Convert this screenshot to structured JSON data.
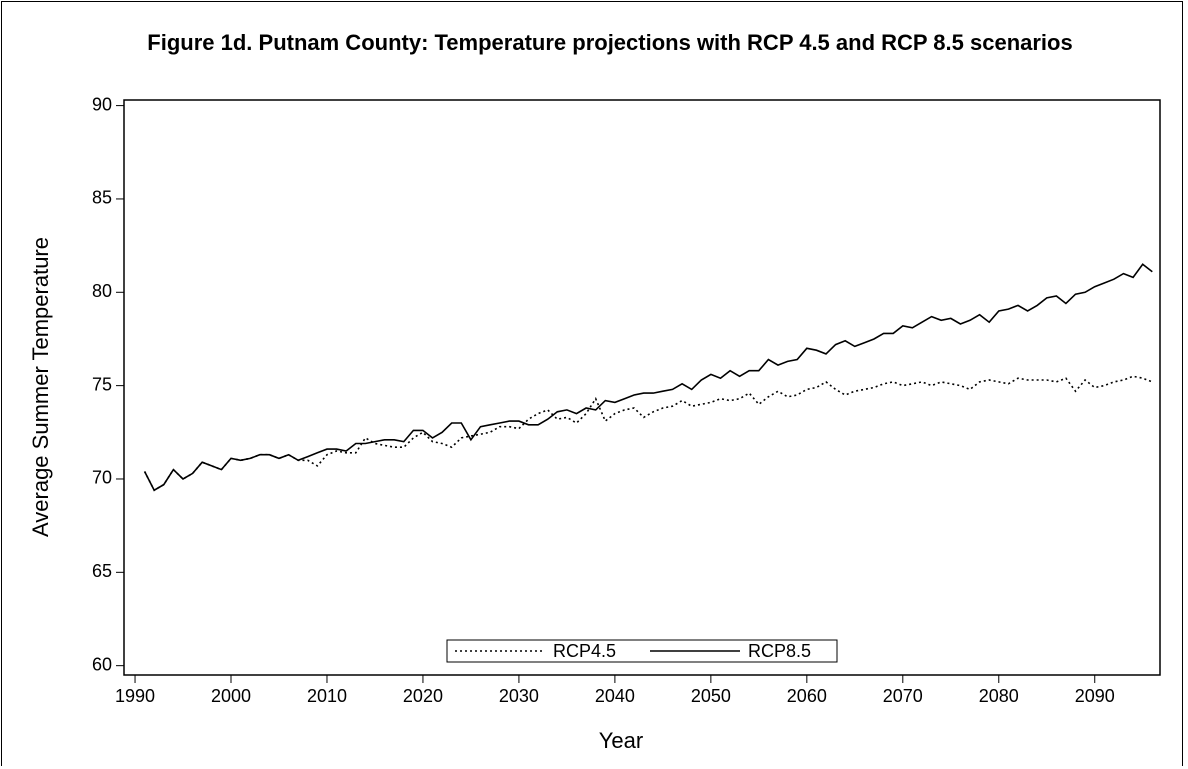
{
  "chart_data": {
    "type": "line",
    "title": "Figure 1d. Putnam County: Temperature projections with RCP 4.5 and RCP 8.5 scenarios",
    "x_label": "Year",
    "y_label": "Average Summer Temperature",
    "x": [
      1991,
      1992,
      1993,
      1994,
      1995,
      1996,
      1997,
      1998,
      1999,
      2000,
      2001,
      2002,
      2003,
      2004,
      2005,
      2006,
      2007,
      2008,
      2009,
      2010,
      2011,
      2012,
      2013,
      2014,
      2015,
      2016,
      2017,
      2018,
      2019,
      2020,
      2021,
      2022,
      2023,
      2024,
      2025,
      2026,
      2027,
      2028,
      2029,
      2030,
      2031,
      2032,
      2033,
      2034,
      2035,
      2036,
      2037,
      2038,
      2039,
      2040,
      2041,
      2042,
      2043,
      2044,
      2045,
      2046,
      2047,
      2048,
      2049,
      2050,
      2051,
      2052,
      2053,
      2054,
      2055,
      2056,
      2057,
      2058,
      2059,
      2060,
      2061,
      2062,
      2063,
      2064,
      2065,
      2066,
      2067,
      2068,
      2069,
      2070,
      2071,
      2072,
      2073,
      2074,
      2075,
      2076,
      2077,
      2078,
      2079,
      2080,
      2081,
      2082,
      2083,
      2084,
      2085,
      2086,
      2087,
      2088,
      2089,
      2090,
      2091,
      2092,
      2093,
      2094,
      2095,
      2096
    ],
    "series": [
      {
        "name": "RCP4.5",
        "color": "#000000",
        "line_style": "dotted",
        "values": [
          70.4,
          69.4,
          69.7,
          70.5,
          70.0,
          70.3,
          70.9,
          70.7,
          70.5,
          71.1,
          71.0,
          71.1,
          71.3,
          71.3,
          71.1,
          71.3,
          71.0,
          71.0,
          70.7,
          71.3,
          71.5,
          71.4,
          71.4,
          72.2,
          71.9,
          71.8,
          71.7,
          71.7,
          72.2,
          72.5,
          72.0,
          71.9,
          71.7,
          72.2,
          72.3,
          72.4,
          72.5,
          72.8,
          72.8,
          72.7,
          73.2,
          73.5,
          73.7,
          73.2,
          73.3,
          73.0,
          73.5,
          74.3,
          73.1,
          73.5,
          73.7,
          73.8,
          73.3,
          73.6,
          73.8,
          73.9,
          74.2,
          73.9,
          74.0,
          74.1,
          74.3,
          74.2,
          74.3,
          74.6,
          74.0,
          74.4,
          74.7,
          74.4,
          74.5,
          74.8,
          74.9,
          75.2,
          74.8,
          74.5,
          74.7,
          74.8,
          74.9,
          75.1,
          75.2,
          75.0,
          75.1,
          75.2,
          75.0,
          75.2,
          75.1,
          75.0,
          74.8,
          75.2,
          75.3,
          75.2,
          75.1,
          75.4,
          75.3,
          75.3,
          75.3,
          75.2,
          75.4,
          74.7,
          75.3,
          74.9,
          75.0,
          75.2,
          75.3,
          75.5,
          75.4,
          75.2
        ]
      },
      {
        "name": "RCP8.5",
        "color": "#000000",
        "line_style": "solid",
        "values": [
          70.4,
          69.4,
          69.7,
          70.5,
          70.0,
          70.3,
          70.9,
          70.7,
          70.5,
          71.1,
          71.0,
          71.1,
          71.3,
          71.3,
          71.1,
          71.3,
          71.0,
          71.2,
          71.4,
          71.6,
          71.6,
          71.5,
          71.9,
          71.9,
          72.0,
          72.1,
          72.1,
          72.0,
          72.6,
          72.6,
          72.2,
          72.5,
          73.0,
          73.0,
          72.1,
          72.8,
          72.9,
          73.0,
          73.1,
          73.1,
          72.9,
          72.9,
          73.2,
          73.6,
          73.7,
          73.5,
          73.8,
          73.7,
          74.2,
          74.1,
          74.3,
          74.5,
          74.6,
          74.6,
          74.7,
          74.8,
          75.1,
          74.8,
          75.3,
          75.6,
          75.4,
          75.8,
          75.5,
          75.8,
          75.8,
          76.4,
          76.1,
          76.3,
          76.4,
          77.0,
          76.9,
          76.7,
          77.2,
          77.4,
          77.1,
          77.3,
          77.5,
          77.8,
          77.8,
          78.2,
          78.1,
          78.4,
          78.7,
          78.5,
          78.6,
          78.3,
          78.5,
          78.8,
          78.4,
          79.0,
          79.1,
          79.3,
          79.0,
          79.3,
          79.7,
          79.8,
          79.4,
          79.9,
          80.0,
          80.3,
          80.5,
          80.7,
          81.0,
          80.8,
          81.5,
          81.1
        ]
      }
    ],
    "xlim": [
      1988.85,
      2096.8
    ],
    "xticks": [
      1990,
      2000,
      2010,
      2020,
      2030,
      2040,
      2050,
      2060,
      2070,
      2080,
      2090
    ],
    "ylim": [
      59.5,
      90.3
    ],
    "yticks": [
      60,
      65,
      70,
      75,
      80,
      85,
      90
    ],
    "grid": false,
    "legend": "bottom"
  }
}
